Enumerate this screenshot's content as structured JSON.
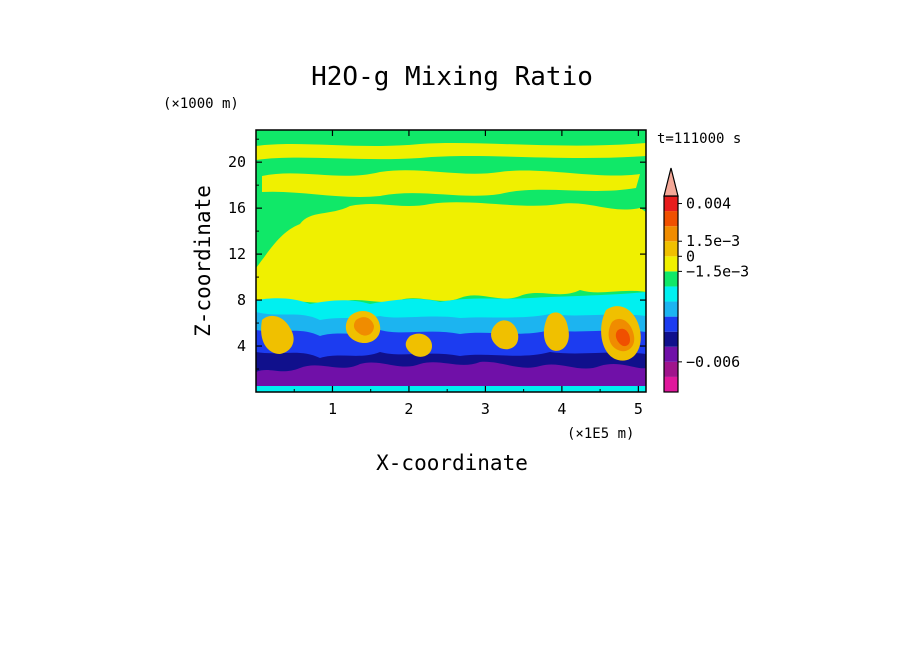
{
  "chart_data": {
    "type": "heatmap",
    "title": "H2O-g Mixing Ratio",
    "xlabel": "X-coordinate",
    "ylabel": "Z-coordinate",
    "x_unit": "(×1E5 m)",
    "y_unit": "(×1000 m)",
    "time_label": "t=111000 s",
    "xlim": [
      0,
      5.1
    ],
    "ylim": [
      0,
      22.8
    ],
    "x_ticks": [
      {
        "value": 1,
        "label": "1"
      },
      {
        "value": 2,
        "label": "2"
      },
      {
        "value": 3,
        "label": "3"
      },
      {
        "value": 4,
        "label": "4"
      },
      {
        "value": 5,
        "label": "5"
      }
    ],
    "y_ticks": [
      {
        "value": 4,
        "label": "4"
      },
      {
        "value": 8,
        "label": "8"
      },
      {
        "value": 12,
        "label": "12"
      },
      {
        "value": 16,
        "label": "16"
      },
      {
        "value": 20,
        "label": "20"
      }
    ],
    "colorbar": {
      "levels": [
        {
          "color": "#e0189c"
        },
        {
          "color": "#a0148c"
        },
        {
          "color": "#7010a8"
        },
        {
          "color": "#10108c"
        },
        {
          "color": "#1c3cf0"
        },
        {
          "color": "#1cb4f0"
        },
        {
          "color": "#00f0f0"
        },
        {
          "color": "#10e868"
        },
        {
          "color": "#f0f000"
        },
        {
          "color": "#f0c000"
        },
        {
          "color": "#f08c00"
        },
        {
          "color": "#f05000"
        },
        {
          "color": "#e81c1c"
        },
        {
          "color": "#f4a898"
        }
      ],
      "labels": [
        {
          "value": "0.004",
          "level": 12.5
        },
        {
          "value": "1.5e−3",
          "level": 10
        },
        {
          "value": "0",
          "level": 9
        },
        {
          "value": "−1.5e−3",
          "level": 8
        },
        {
          "value": "−0.006",
          "level": 2
        }
      ]
    }
  }
}
